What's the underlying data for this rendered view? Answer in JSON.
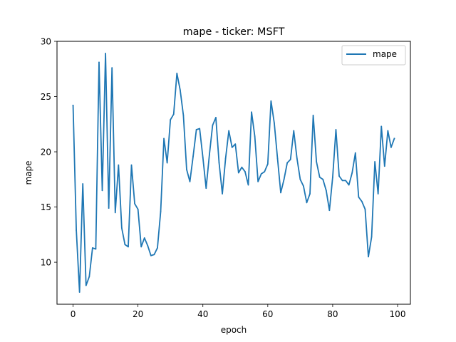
{
  "chart_data": {
    "type": "line",
    "title": "mape - ticker: MSFT",
    "xlabel": "epoch",
    "ylabel": "mape",
    "xlim": [
      -4.95,
      103.95
    ],
    "ylim": [
      6.2,
      30.0
    ],
    "xticks": [
      0,
      20,
      40,
      60,
      80,
      100
    ],
    "yticks": [
      10,
      15,
      20,
      25,
      30
    ],
    "grid": false,
    "legend_position": "top-right",
    "series": [
      {
        "name": "mape",
        "color": "#1f77b4",
        "x": [
          0,
          1,
          2,
          3,
          4,
          5,
          6,
          7,
          8,
          9,
          10,
          11,
          12,
          13,
          14,
          15,
          16,
          17,
          18,
          19,
          20,
          21,
          22,
          23,
          24,
          25,
          26,
          27,
          28,
          29,
          30,
          31,
          32,
          33,
          34,
          35,
          36,
          37,
          38,
          39,
          40,
          41,
          42,
          43,
          44,
          45,
          46,
          47,
          48,
          49,
          50,
          51,
          52,
          53,
          54,
          55,
          56,
          57,
          58,
          59,
          60,
          61,
          62,
          63,
          64,
          65,
          66,
          67,
          68,
          69,
          70,
          71,
          72,
          73,
          74,
          75,
          76,
          77,
          78,
          79,
          80,
          81,
          82,
          83,
          84,
          85,
          86,
          87,
          88,
          89,
          90,
          91,
          92,
          93,
          94,
          95,
          96,
          97,
          98,
          99
        ],
        "values": [
          24.2,
          12.9,
          7.3,
          17.1,
          7.9,
          8.7,
          11.3,
          11.2,
          28.1,
          16.5,
          28.9,
          14.9,
          27.6,
          14.5,
          18.8,
          13.1,
          11.6,
          11.4,
          18.8,
          15.3,
          14.8,
          11.4,
          12.2,
          11.5,
          10.6,
          10.7,
          11.3,
          14.6,
          21.2,
          19.0,
          22.9,
          23.4,
          27.1,
          25.6,
          23.3,
          18.4,
          17.3,
          19.6,
          22.0,
          22.1,
          19.5,
          16.7,
          19.7,
          22.4,
          23.1,
          19.0,
          16.2,
          19.4,
          21.9,
          20.4,
          20.7,
          18.1,
          18.6,
          18.2,
          17.0,
          23.6,
          21.4,
          17.3,
          18.0,
          18.2,
          18.9,
          24.6,
          22.6,
          19.4,
          16.3,
          17.5,
          19.0,
          19.3,
          21.9,
          19.4,
          17.5,
          16.9,
          15.4,
          16.2,
          23.3,
          19.1,
          17.7,
          17.5,
          16.5,
          14.7,
          17.7,
          22.0,
          17.8,
          17.4,
          17.4,
          17.0,
          18.1,
          19.9,
          15.9,
          15.5,
          14.8,
          10.5,
          12.3,
          19.1,
          16.2,
          22.3,
          18.7,
          21.9,
          20.4,
          21.2
        ]
      }
    ]
  }
}
